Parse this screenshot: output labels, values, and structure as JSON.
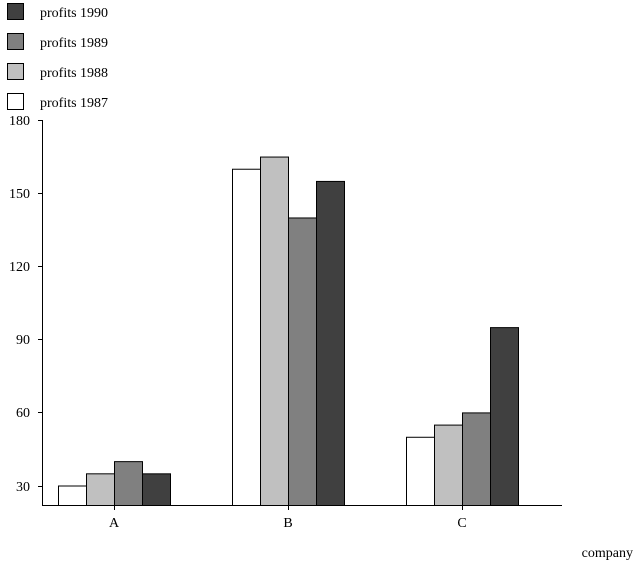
{
  "chart_data": {
    "type": "bar",
    "title": "",
    "xlabel": "company",
    "ylabel": "",
    "categories": [
      "A",
      "B",
      "C"
    ],
    "ylim": [
      22,
      180
    ],
    "yticks": [
      30,
      60,
      90,
      120,
      150,
      180
    ],
    "grid": false,
    "legend_position": "top-left",
    "legend_order": [
      "profits 1990",
      "profits 1989",
      "profits 1988",
      "profits 1987"
    ],
    "series": [
      {
        "name": "profits 1987",
        "color": "#ffffff",
        "values": [
          30,
          160,
          50
        ]
      },
      {
        "name": "profits 1988",
        "color": "#c0c0c0",
        "values": [
          35,
          165,
          55
        ]
      },
      {
        "name": "profits 1989",
        "color": "#808080",
        "values": [
          40,
          140,
          60
        ]
      },
      {
        "name": "profits 1990",
        "color": "#404040",
        "values": [
          35,
          155,
          95
        ]
      }
    ]
  }
}
